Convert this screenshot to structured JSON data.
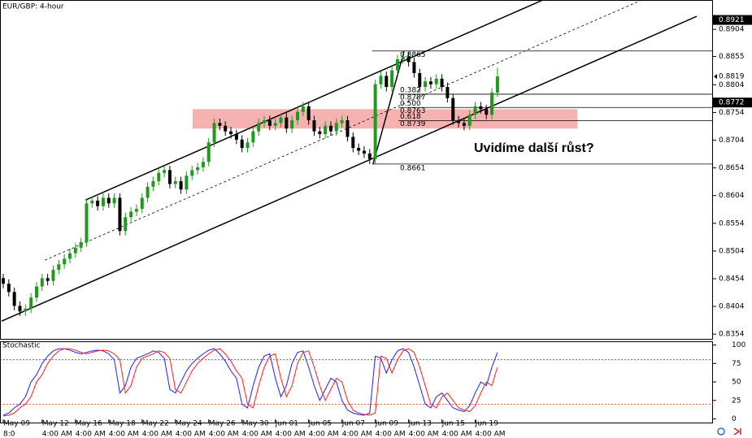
{
  "chart_data": [
    {
      "type": "candlestick",
      "title": "EUR/GBP: 4-hour",
      "categories": [
        "May 09",
        null,
        null,
        null,
        null,
        null,
        null,
        "May 12",
        null,
        null,
        null,
        null,
        null,
        "May 16",
        null,
        null,
        null,
        null,
        null,
        "May 18",
        null,
        null,
        null,
        null,
        null,
        "May 22",
        null,
        null,
        null,
        null,
        null,
        "May 24",
        null,
        null,
        null,
        null,
        null,
        "May 26",
        null,
        null,
        null,
        null,
        null,
        "May 30",
        null,
        null,
        null,
        null,
        null,
        "Jun 01",
        null,
        null,
        null,
        null,
        null,
        "Jun 05",
        null,
        null,
        null,
        null,
        null,
        "Jun 07",
        null,
        null,
        null,
        null,
        null,
        "Jun 09",
        null,
        null,
        null,
        null,
        null,
        "Jun 13",
        null,
        null,
        null,
        null,
        null,
        "Jun 15",
        null,
        null,
        null,
        null,
        null,
        "Jun 19",
        null,
        null,
        null,
        null
      ],
      "x_sublabels": [
        "8:0",
        null,
        null,
        null,
        null,
        null,
        null,
        "4:00 AM",
        null,
        null,
        null,
        null,
        null,
        "4:00 AM",
        null,
        null,
        null,
        null,
        null,
        "4:00 AM",
        null,
        null,
        null,
        null,
        null,
        "4:00 AM",
        null,
        null,
        null,
        null,
        null,
        "4:00 AM",
        null,
        null,
        null,
        null,
        null,
        "4:00 AM",
        null,
        null,
        null,
        null,
        null,
        "4:00 AM",
        null,
        null,
        null,
        null,
        null,
        "4:00 AM",
        null,
        null,
        null,
        null,
        null,
        "4:00 AM",
        null,
        null,
        null,
        null,
        null,
        "4:00 AM",
        null,
        null,
        null,
        null,
        null,
        "4:00 AM",
        null,
        null,
        null,
        null,
        null,
        "4:00 AM",
        null,
        null,
        null,
        null,
        null,
        "4:00 AM",
        null,
        null,
        null,
        null,
        null,
        "4:00 AM",
        null,
        null,
        null,
        null
      ],
      "open": [
        0.8455,
        0.8445,
        0.843,
        0.8405,
        0.8395,
        0.84,
        0.842,
        0.844,
        0.8455,
        0.845,
        0.847,
        0.848,
        0.849,
        0.85,
        0.851,
        0.852,
        0.859,
        0.8595,
        0.8585,
        0.86,
        0.859,
        0.86,
        0.854,
        0.8565,
        0.8575,
        0.858,
        0.86,
        0.862,
        0.863,
        0.8645,
        0.865,
        0.8625,
        0.863,
        0.8615,
        0.864,
        0.865,
        0.8655,
        0.8665,
        0.87,
        0.8735,
        0.873,
        0.872,
        0.8715,
        0.8705,
        0.869,
        0.87,
        0.872,
        0.8735,
        0.874,
        0.873,
        0.8735,
        0.8745,
        0.8725,
        0.874,
        0.8755,
        0.8765,
        0.874,
        0.872,
        0.8715,
        0.873,
        0.872,
        0.8735,
        0.874,
        0.871,
        0.869,
        0.8685,
        0.868,
        0.867,
        0.8805,
        0.882,
        0.88,
        0.883,
        0.885,
        0.8855,
        0.8845,
        0.8825,
        0.88,
        0.881,
        0.8805,
        0.8815,
        0.88,
        0.878,
        0.874,
        0.8735,
        0.873,
        0.875,
        0.8765,
        0.876,
        0.875,
        0.879
      ],
      "high": [
        0.8463,
        0.8453,
        0.8438,
        0.8413,
        0.8408,
        0.8428,
        0.8448,
        0.8463,
        0.8463,
        0.8478,
        0.8488,
        0.8498,
        0.8508,
        0.8518,
        0.8528,
        0.8598,
        0.8603,
        0.8603,
        0.8608,
        0.8608,
        0.8608,
        0.8608,
        0.8573,
        0.8583,
        0.8588,
        0.8608,
        0.8628,
        0.8638,
        0.8653,
        0.8658,
        0.8658,
        0.8638,
        0.8638,
        0.8648,
        0.8658,
        0.8663,
        0.8673,
        0.8708,
        0.8743,
        0.8743,
        0.8738,
        0.8728,
        0.8723,
        0.8713,
        0.8708,
        0.8728,
        0.8743,
        0.8748,
        0.8748,
        0.8743,
        0.8753,
        0.8753,
        0.8748,
        0.8763,
        0.8773,
        0.8773,
        0.8748,
        0.8728,
        0.8738,
        0.8738,
        0.8743,
        0.8748,
        0.8748,
        0.8718,
        0.8698,
        0.8693,
        0.8688,
        0.8813,
        0.8828,
        0.8828,
        0.8838,
        0.8858,
        0.8865,
        0.8863,
        0.8853,
        0.8833,
        0.8818,
        0.8818,
        0.8823,
        0.8823,
        0.8808,
        0.8788,
        0.8748,
        0.8743,
        0.8758,
        0.8773,
        0.8773,
        0.8768,
        0.8798,
        0.8835
      ],
      "low": [
        0.8437,
        0.8422,
        0.8397,
        0.8387,
        0.8387,
        0.8392,
        0.8412,
        0.8432,
        0.8442,
        0.8442,
        0.8462,
        0.8472,
        0.8482,
        0.8492,
        0.8502,
        0.8512,
        0.8582,
        0.8577,
        0.8577,
        0.8582,
        0.8582,
        0.8532,
        0.8532,
        0.8557,
        0.8567,
        0.8572,
        0.8592,
        0.8612,
        0.8622,
        0.8637,
        0.8617,
        0.8617,
        0.8607,
        0.8607,
        0.8632,
        0.8642,
        0.8647,
        0.8657,
        0.8692,
        0.8722,
        0.8712,
        0.8707,
        0.8697,
        0.8682,
        0.8682,
        0.8692,
        0.8712,
        0.8727,
        0.8722,
        0.8722,
        0.8727,
        0.8717,
        0.8717,
        0.8732,
        0.8747,
        0.8732,
        0.8712,
        0.8707,
        0.8707,
        0.8712,
        0.8712,
        0.8727,
        0.8702,
        0.8682,
        0.8677,
        0.8672,
        0.8661,
        0.8662,
        0.8797,
        0.8792,
        0.8792,
        0.8822,
        0.8842,
        0.8837,
        0.8817,
        0.8792,
        0.8792,
        0.8797,
        0.8797,
        0.8792,
        0.8772,
        0.8732,
        0.8727,
        0.8722,
        0.8722,
        0.8742,
        0.8752,
        0.8742,
        0.8742,
        0.8782
      ],
      "close": [
        0.8445,
        0.843,
        0.8405,
        0.8395,
        0.84,
        0.842,
        0.844,
        0.8455,
        0.845,
        0.847,
        0.848,
        0.849,
        0.85,
        0.851,
        0.852,
        0.859,
        0.8595,
        0.8585,
        0.86,
        0.859,
        0.86,
        0.854,
        0.8565,
        0.8575,
        0.858,
        0.86,
        0.862,
        0.863,
        0.8645,
        0.865,
        0.8625,
        0.863,
        0.8615,
        0.864,
        0.865,
        0.8655,
        0.8665,
        0.87,
        0.8735,
        0.873,
        0.872,
        0.8715,
        0.8705,
        0.869,
        0.87,
        0.872,
        0.8735,
        0.874,
        0.873,
        0.8735,
        0.8745,
        0.8725,
        0.874,
        0.8755,
        0.8765,
        0.874,
        0.872,
        0.8715,
        0.873,
        0.872,
        0.8735,
        0.874,
        0.871,
        0.869,
        0.8685,
        0.868,
        0.867,
        0.8805,
        0.882,
        0.88,
        0.883,
        0.885,
        0.8855,
        0.8845,
        0.8825,
        0.88,
        0.881,
        0.8805,
        0.8815,
        0.88,
        0.878,
        0.874,
        0.8735,
        0.873,
        0.875,
        0.8765,
        0.876,
        0.875,
        0.879,
        0.8819
      ],
      "up_color": "#1f9a1f",
      "down_color": "#000000",
      "ylim": [
        0.8344,
        0.8957
      ],
      "yticks": [
        0.8904,
        0.8855,
        0.8804,
        0.8754,
        0.8704,
        0.8654,
        0.8604,
        0.8554,
        0.8504,
        0.8454,
        0.8404,
        0.8354
      ],
      "trendlines": [
        {
          "points": [
            [
              14.8,
              0.8596
            ],
            [
              97.2,
              0.8957
            ]
          ],
          "color": "#000000",
          "dashed": false
        },
        {
          "points": [
            [
              -0.3,
              0.83775
            ],
            [
              124.9,
              0.89275
            ]
          ],
          "color": "#000000",
          "dashed": false
        },
        {
          "points": [
            [
              7.5,
              0.84875
            ],
            [
              115,
              0.8957
            ]
          ],
          "color": "#000000",
          "dashed": true
        },
        {
          "points": [
            [
              66.6,
              0.8661
            ],
            [
              72.2,
              0.8865
            ]
          ],
          "color": "#000000",
          "dashed": false
        }
      ],
      "zone": {
        "x": [
          34.1,
          103.4
        ],
        "y": [
          0.8725,
          0.876
        ],
        "color": "#f4a3a3"
      },
      "hlines": [
        0.8865,
        0.8661
      ],
      "fib": [
        {
          "ratio": "0.382",
          "price": 0.8787
        },
        {
          "ratio": "0.500",
          "price": 0.8763
        },
        {
          "ratio": "0.618",
          "price": 0.8739
        }
      ],
      "annotation": "Uvidíme další růst?",
      "price_markers": [
        {
          "value": 0.8921,
          "style": "box"
        },
        {
          "value": 0.8819,
          "style": "arrow"
        },
        {
          "value": 0.8772,
          "style": "box"
        }
      ]
    },
    {
      "type": "line",
      "title": "Stochastic",
      "series": [
        {
          "color": "#2020ff",
          "values": [
            5,
            8,
            15,
            20,
            30,
            50,
            60,
            75,
            85,
            92,
            95,
            95,
            93,
            90,
            88,
            90,
            92,
            93,
            92,
            88,
            80,
            35,
            45,
            70,
            82,
            85,
            88,
            92,
            90,
            82,
            40,
            35,
            50,
            65,
            75,
            82,
            88,
            93,
            95,
            88,
            78,
            65,
            55,
            20,
            15,
            45,
            70,
            85,
            88,
            55,
            30,
            45,
            75,
            90,
            92,
            70,
            45,
            25,
            40,
            55,
            50,
            25,
            12,
            8,
            6,
            5,
            8,
            85,
            82,
            62,
            80,
            92,
            95,
            90,
            70,
            45,
            20,
            15,
            30,
            35,
            25,
            15,
            12,
            10,
            18,
            35,
            50,
            45,
            70,
            90
          ]
        },
        {
          "color": "#ff2020",
          "values": [
            4,
            5,
            8,
            15,
            20,
            30,
            50,
            60,
            75,
            85,
            92,
            95,
            95,
            93,
            90,
            88,
            90,
            92,
            93,
            92,
            88,
            80,
            35,
            45,
            70,
            82,
            85,
            88,
            92,
            90,
            82,
            40,
            35,
            50,
            65,
            75,
            82,
            88,
            93,
            95,
            88,
            78,
            65,
            55,
            20,
            15,
            45,
            70,
            85,
            88,
            55,
            30,
            45,
            75,
            90,
            92,
            70,
            45,
            25,
            40,
            55,
            50,
            25,
            12,
            8,
            6,
            5,
            8,
            85,
            82,
            62,
            80,
            92,
            95,
            90,
            70,
            45,
            20,
            15,
            30,
            35,
            25,
            15,
            12,
            10,
            18,
            35,
            50,
            45,
            70
          ]
        }
      ],
      "levels": [
        {
          "value": 80,
          "color": "#2020ff"
        },
        {
          "value": 20,
          "color": "#ff2020"
        }
      ],
      "ylim": [
        -6,
        105
      ],
      "yticks": [
        0,
        25,
        50,
        75,
        100
      ]
    }
  ]
}
